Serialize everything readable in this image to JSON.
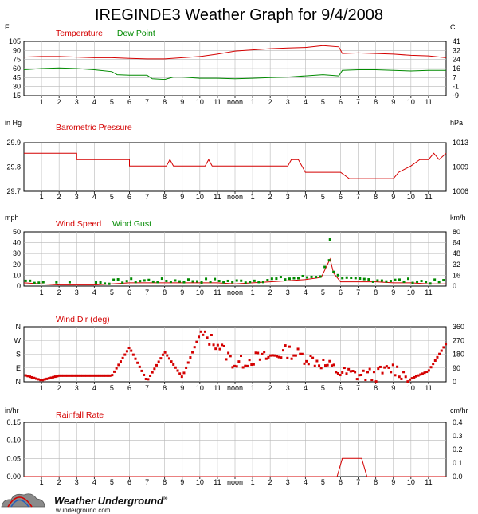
{
  "title": "IREGINDE3 Weather Graph for 9/4/2008",
  "colors": {
    "red": "#d40000",
    "green": "#008a00",
    "grid": "#b8b8b8",
    "frame": "#000000"
  },
  "hour_labels": [
    "1",
    "2",
    "3",
    "4",
    "5",
    "6",
    "7",
    "8",
    "9",
    "10",
    "11",
    "noon",
    "1",
    "2",
    "3",
    "4",
    "5",
    "6",
    "7",
    "8",
    "9",
    "10",
    "11"
  ],
  "logo": {
    "name": "Weather Underground",
    "trademark": "®",
    "site": "wunderground.com"
  },
  "chart_data": [
    {
      "type": "line",
      "title": "",
      "series": [
        {
          "name": "Temperature",
          "color": "#d40000",
          "points": [
            [
              0,
              79
            ],
            [
              1,
              80
            ],
            [
              2,
              80
            ],
            [
              3,
              79
            ],
            [
              4,
              78
            ],
            [
              5,
              78
            ],
            [
              6,
              77
            ],
            [
              7,
              76
            ],
            [
              8,
              76
            ],
            [
              9,
              78
            ],
            [
              10,
              80
            ],
            [
              11,
              84
            ],
            [
              12,
              89
            ],
            [
              13,
              91
            ],
            [
              14,
              93
            ],
            [
              15,
              94
            ],
            [
              16,
              95
            ],
            [
              17,
              98
            ],
            [
              17.9,
              96
            ],
            [
              18.1,
              85
            ],
            [
              19,
              86
            ],
            [
              20,
              85
            ],
            [
              21,
              84
            ],
            [
              22,
              82
            ],
            [
              23,
              81
            ],
            [
              24,
              78
            ]
          ]
        },
        {
          "name": "Dew Point",
          "color": "#008a00",
          "points": [
            [
              0,
              58
            ],
            [
              1,
              60
            ],
            [
              2,
              61
            ],
            [
              3,
              60
            ],
            [
              4,
              58
            ],
            [
              5,
              55
            ],
            [
              5.3,
              50
            ],
            [
              6,
              49
            ],
            [
              7,
              49
            ],
            [
              7.3,
              43
            ],
            [
              8,
              42
            ],
            [
              8.5,
              46
            ],
            [
              9,
              46
            ],
            [
              10,
              44
            ],
            [
              11,
              44
            ],
            [
              12,
              43
            ],
            [
              13,
              44
            ],
            [
              14,
              45
            ],
            [
              15,
              46
            ],
            [
              16,
              48
            ],
            [
              17,
              50
            ],
            [
              17.9,
              48
            ],
            [
              18.1,
              57
            ],
            [
              19,
              58
            ],
            [
              20,
              58
            ],
            [
              21,
              57
            ],
            [
              22,
              56
            ],
            [
              23,
              57
            ],
            [
              24,
              57
            ]
          ]
        }
      ],
      "left_axis": {
        "label": "F",
        "ticks": [
          "105",
          "90",
          "75",
          "60",
          "45",
          "30",
          "15"
        ],
        "ylim": [
          15,
          105
        ]
      },
      "right_axis": {
        "label": "C",
        "ticks": [
          "41",
          "32",
          "24",
          "16",
          "7",
          "-1",
          "-9"
        ]
      }
    },
    {
      "type": "line",
      "title": "",
      "series": [
        {
          "name": "Barometric Pressure",
          "color": "#d40000",
          "points": [
            [
              0,
              29.88
            ],
            [
              3,
              29.88
            ],
            [
              3,
              29.85
            ],
            [
              6,
              29.85
            ],
            [
              6,
              29.82
            ],
            [
              8.1,
              29.82
            ],
            [
              8.3,
              29.85
            ],
            [
              8.5,
              29.82
            ],
            [
              10.3,
              29.82
            ],
            [
              10.5,
              29.85
            ],
            [
              10.7,
              29.82
            ],
            [
              15,
              29.82
            ],
            [
              15.2,
              29.85
            ],
            [
              15.6,
              29.85
            ],
            [
              16,
              29.79
            ],
            [
              18,
              29.79
            ],
            [
              18.5,
              29.76
            ],
            [
              21,
              29.76
            ],
            [
              21.3,
              29.79
            ],
            [
              22,
              29.82
            ],
            [
              22.5,
              29.85
            ],
            [
              23,
              29.85
            ],
            [
              23.3,
              29.88
            ],
            [
              23.6,
              29.85
            ],
            [
              24,
              29.88
            ]
          ]
        }
      ],
      "left_axis": {
        "label": "in Hg",
        "ticks": [
          "29.9",
          "29.8",
          "29.7"
        ],
        "ylim": [
          29.7,
          29.93
        ]
      },
      "right_axis": {
        "label": "hPa",
        "ticks": [
          "1013",
          "1009",
          "1006"
        ]
      }
    },
    {
      "type": "line",
      "title": "",
      "series": [
        {
          "name": "Wind Speed",
          "color": "#d40000",
          "points": [
            [
              0,
              3
            ],
            [
              1,
              2
            ],
            [
              2,
              1
            ],
            [
              3,
              1
            ],
            [
              4,
              1
            ],
            [
              5,
              2
            ],
            [
              6,
              3
            ],
            [
              7,
              3
            ],
            [
              8,
              3
            ],
            [
              9,
              3
            ],
            [
              10,
              3
            ],
            [
              11,
              3
            ],
            [
              12,
              2
            ],
            [
              13,
              3
            ],
            [
              14,
              4
            ],
            [
              15,
              5
            ],
            [
              16,
              6
            ],
            [
              16.9,
              8
            ],
            [
              17.2,
              18
            ],
            [
              17.4,
              25
            ],
            [
              17.6,
              12
            ],
            [
              18,
              4
            ],
            [
              19,
              4
            ],
            [
              20,
              4
            ],
            [
              21,
              3
            ],
            [
              22,
              3
            ],
            [
              23,
              2
            ],
            [
              24,
              2
            ]
          ]
        },
        {
          "name": "Wind Gust",
          "color": "#008a00",
          "max_point": [
            17.4,
            43
          ]
        }
      ],
      "left_axis": {
        "label": "mph",
        "ticks": [
          "50",
          "40",
          "30",
          "20",
          "10",
          "0"
        ],
        "ylim": [
          0,
          50
        ]
      },
      "right_axis": {
        "label": "km/h",
        "ticks": [
          "80",
          "64",
          "48",
          "32",
          "16",
          "0"
        ]
      }
    },
    {
      "type": "scatter",
      "title": "",
      "series": [
        {
          "name": "Wind Dir (deg)",
          "color": "#d40000",
          "segments": [
            [
              0,
              45
            ],
            [
              1,
              10
            ],
            [
              2,
              40
            ],
            [
              3,
              40
            ],
            [
              4,
              40
            ],
            [
              5,
              40
            ],
            [
              6,
              225
            ],
            [
              7,
              5
            ],
            [
              8,
              195
            ],
            [
              9,
              30
            ],
            [
              10,
              310
            ],
            [
              11,
              250
            ],
            [
              12,
              115
            ],
            [
              13,
              150
            ],
            [
              14,
              160
            ],
            [
              15,
              200
            ],
            [
              16,
              160
            ],
            [
              17,
              120
            ],
            [
              18,
              60
            ],
            [
              19,
              45
            ],
            [
              20,
              45
            ],
            [
              21,
              90
            ],
            [
              22,
              20
            ],
            [
              23,
              70
            ],
            [
              24,
              250
            ]
          ]
        }
      ],
      "left_axis": {
        "label": "",
        "ticks": [
          "N",
          "W",
          "S",
          "E",
          "N"
        ],
        "ylim": [
          0,
          360
        ]
      },
      "right_axis": {
        "label": "",
        "ticks": [
          "360",
          "270",
          "180",
          "90",
          "0"
        ]
      }
    },
    {
      "type": "line",
      "title": "",
      "series": [
        {
          "name": "Rainfall Rate",
          "color": "#d40000",
          "points": [
            [
              0,
              0
            ],
            [
              17.8,
              0
            ],
            [
              18.1,
              0.05
            ],
            [
              19.2,
              0.05
            ],
            [
              19.5,
              0
            ],
            [
              24,
              0
            ]
          ]
        }
      ],
      "left_axis": {
        "label": "in/hr",
        "ticks": [
          "0.15",
          "0.10",
          "0.05",
          "0.00"
        ],
        "ylim": [
          0,
          0.15
        ]
      },
      "right_axis": {
        "label": "cm/hr",
        "ticks": [
          "0.4",
          "0.3",
          "0.2",
          "0.1",
          "0.0"
        ]
      }
    }
  ]
}
